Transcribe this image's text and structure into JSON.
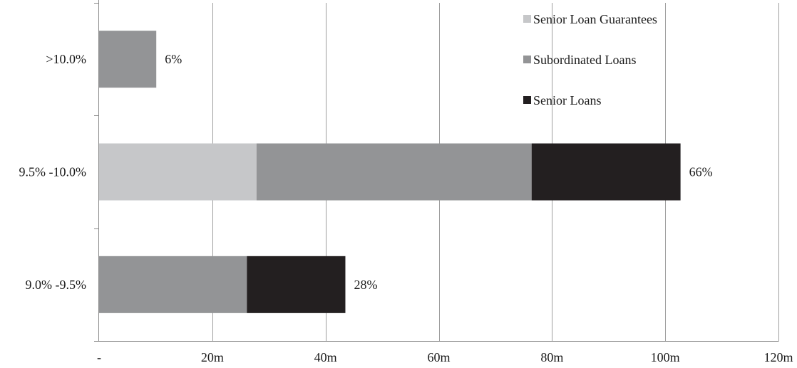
{
  "chart_data": {
    "type": "bar",
    "orientation": "horizontal",
    "stacked": true,
    "categories": [
      "9.0% -9.5%",
      "9.5% -10.0%",
      ">10.0%"
    ],
    "series": [
      {
        "name": "Senior Loan Guarantees",
        "color": "#c6c7c9",
        "values": [
          0,
          27.8,
          0
        ]
      },
      {
        "name": "Subordinated Loans",
        "color": "#939496",
        "values": [
          26.1,
          48.6,
          10.1
        ]
      },
      {
        "name": "Senior Loans",
        "color": "#231f20",
        "values": [
          17.4,
          26.3,
          0
        ]
      }
    ],
    "data_labels": [
      "28%",
      "66%",
      "6%"
    ],
    "xlim": [
      0,
      120
    ],
    "x_ticks": [
      0,
      20,
      40,
      60,
      80,
      100,
      120
    ],
    "x_tick_labels": [
      "-",
      "20m",
      "40m",
      "60m",
      "80m",
      "100m",
      "120m"
    ],
    "legend_order": [
      "Senior Loan Guarantees",
      "Subordinated Loans",
      "Senior Loans"
    ],
    "legend_position": "top-right",
    "grid": "vertical"
  }
}
